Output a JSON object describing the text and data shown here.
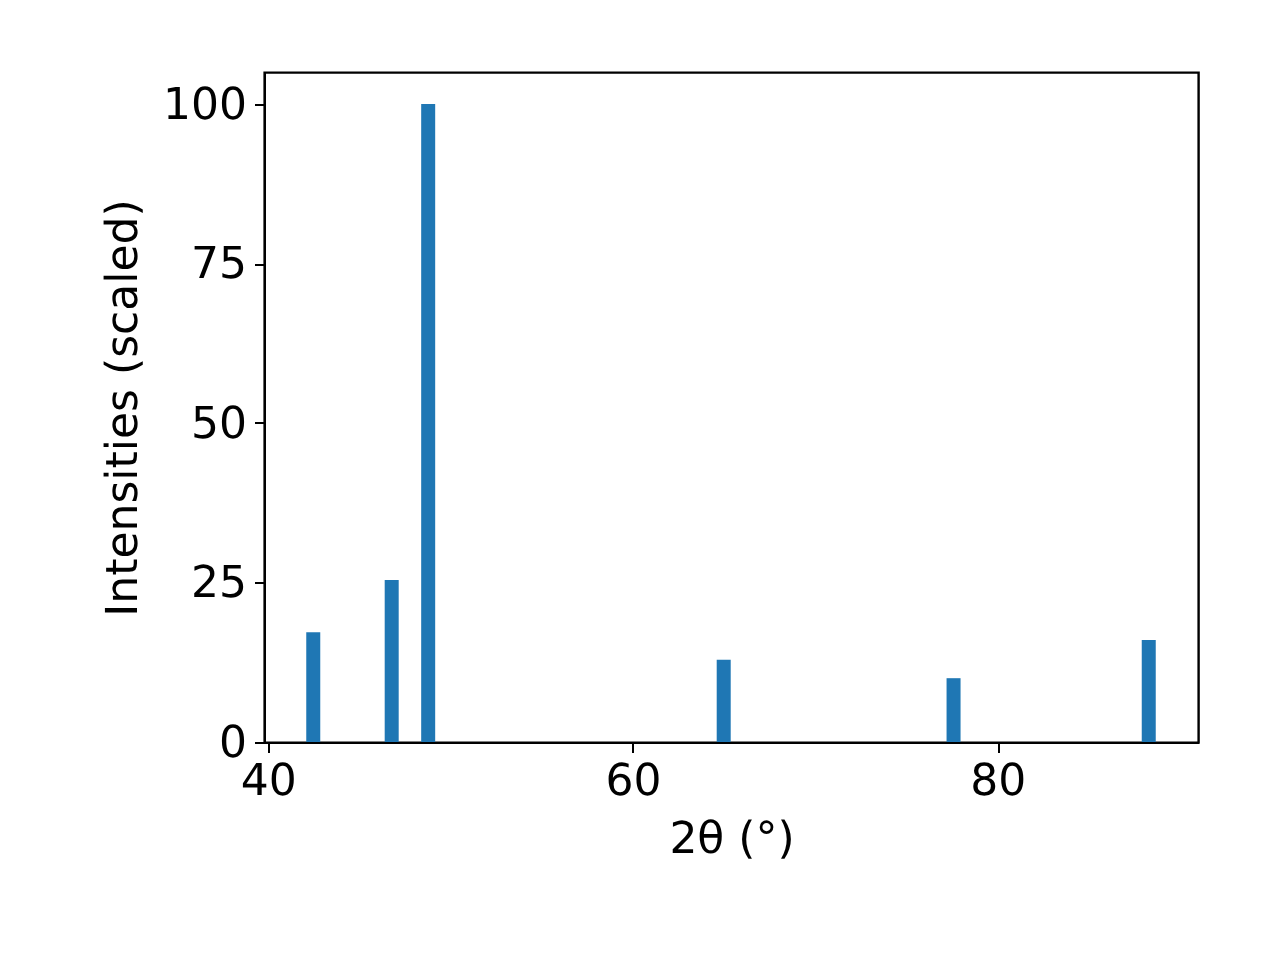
{
  "chart_data": {
    "type": "bar",
    "xlabel": "2θ (°)",
    "ylabel": "Intensities (scaled)",
    "x": [
      42.5,
      46.8,
      48.8,
      65.0,
      77.6,
      88.3
    ],
    "series": [
      {
        "color": "#1f77b4",
        "values": [
          17.2,
          25.4,
          100,
          12.9,
          10,
          16
        ]
      }
    ],
    "xlim": [
      39.8,
      91.0
    ],
    "xticks": [
      40,
      60,
      80
    ],
    "ylim": [
      0,
      105
    ],
    "yticks": [
      0,
      25,
      50,
      75,
      100
    ],
    "grid": false
  }
}
